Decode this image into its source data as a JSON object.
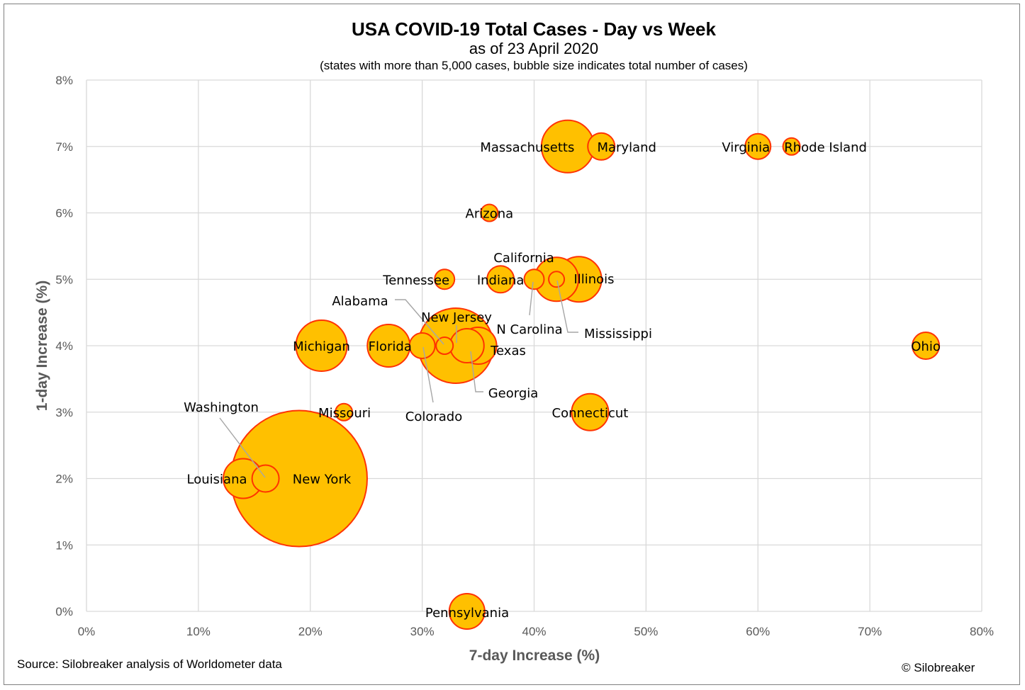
{
  "chart_data": {
    "type": "scatter",
    "title": "USA COVID-19 Total Cases - Day vs Week",
    "subtitle": "as of 23 April 2020",
    "note": "(states with more than 5,000 cases, bubble size indicates total number of cases)",
    "xlabel": "7-day Increase (%)",
    "ylabel": "1-day Increase (%)",
    "xlim": [
      0,
      80
    ],
    "ylim": [
      0,
      8
    ],
    "xticks": [
      "0%",
      "10%",
      "20%",
      "30%",
      "40%",
      "50%",
      "60%",
      "70%",
      "80%"
    ],
    "yticks": [
      "0%",
      "1%",
      "2%",
      "3%",
      "4%",
      "5%",
      "6%",
      "7%",
      "8%"
    ],
    "grid": true,
    "legend": "none",
    "colors": {
      "fill": "#FFC000",
      "stroke": "#FF3300",
      "leader": "#A6A6A6",
      "grid": "#D9D9D9"
    },
    "points": [
      {
        "label": "New York",
        "x": 19,
        "y": 2,
        "r": 96
      },
      {
        "label": "New Jersey",
        "x": 33,
        "y": 4,
        "r": 53
      },
      {
        "label": "Massachusetts",
        "x": 43,
        "y": 7,
        "r": 37
      },
      {
        "label": "California",
        "x": 42,
        "y": 5,
        "r": 31
      },
      {
        "label": "Illinois",
        "x": 44,
        "y": 5,
        "r": 32
      },
      {
        "label": "Pennsylvania",
        "x": 34,
        "y": 0,
        "r": 25
      },
      {
        "label": "Michigan",
        "x": 21,
        "y": 4,
        "r": 36
      },
      {
        "label": "Florida",
        "x": 27,
        "y": 4,
        "r": 30
      },
      {
        "label": "Louisiana",
        "x": 14,
        "y": 2,
        "r": 28
      },
      {
        "label": "Connecticut",
        "x": 45,
        "y": 3,
        "r": 26
      },
      {
        "label": "Texas",
        "x": 35,
        "y": 4,
        "r": 26
      },
      {
        "label": "Georgia",
        "x": 34,
        "y": 4,
        "r": 24
      },
      {
        "label": "Maryland",
        "x": 46,
        "y": 7,
        "r": 19
      },
      {
        "label": "Indiana",
        "x": 37,
        "y": 5,
        "r": 19
      },
      {
        "label": "Ohio",
        "x": 75,
        "y": 4,
        "r": 19
      },
      {
        "label": "Washington",
        "x": 16,
        "y": 2,
        "r": 19
      },
      {
        "label": "Colorado",
        "x": 30,
        "y": 4,
        "r": 18
      },
      {
        "label": "Virginia",
        "x": 60,
        "y": 7,
        "r": 18
      },
      {
        "label": "Tennessee",
        "x": 32,
        "y": 5,
        "r": 14
      },
      {
        "label": "N Carolina",
        "x": 40,
        "y": 5,
        "r": 14
      },
      {
        "label": "Missouri",
        "x": 23,
        "y": 3,
        "r": 12
      },
      {
        "label": "Arizona",
        "x": 36,
        "y": 6,
        "r": 12
      },
      {
        "label": "Alabama",
        "x": 32,
        "y": 4,
        "r": 12
      },
      {
        "label": "Rhode Island",
        "x": 63,
        "y": 7,
        "r": 12
      },
      {
        "label": "Mississippi",
        "x": 42,
        "y": 5,
        "r": 11
      }
    ],
    "source": "Source: Silobreaker analysis of Worldometer data",
    "credit": "© Silobreaker"
  }
}
